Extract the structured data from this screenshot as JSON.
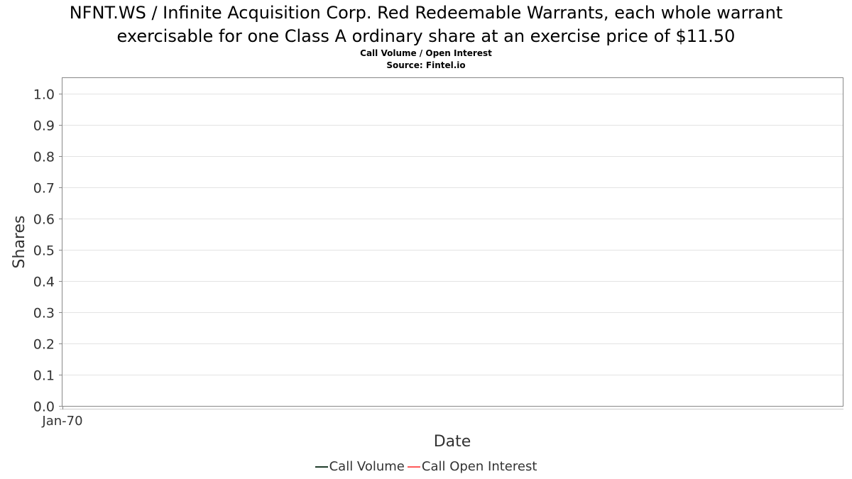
{
  "chart_data": {
    "type": "line",
    "title_lines": [
      "NFNT.WS / Infinite Acquisition Corp. Red Redeemable Warrants, each whole warrant",
      "exercisable for one Class A ordinary share at an exercise price of $11.50"
    ],
    "subtitle_lines": [
      "Call Volume / Open Interest",
      "Source: Fintel.io"
    ],
    "xlabel": "Date",
    "ylabel": "Shares",
    "x_ticks": [
      "Jan-70"
    ],
    "y_ticks": [
      "0.0",
      "0.1",
      "0.2",
      "0.3",
      "0.4",
      "0.5",
      "0.6",
      "0.7",
      "0.8",
      "0.9",
      "1.0"
    ],
    "ylim": [
      0,
      1.05
    ],
    "grid": true,
    "legend_position": "bottom-center",
    "series": [
      {
        "name": "Call Volume",
        "color": "#1f3d2b",
        "x": [],
        "values": []
      },
      {
        "name": "Call Open Interest",
        "color": "#ff5a5a",
        "x": [],
        "values": []
      }
    ]
  }
}
